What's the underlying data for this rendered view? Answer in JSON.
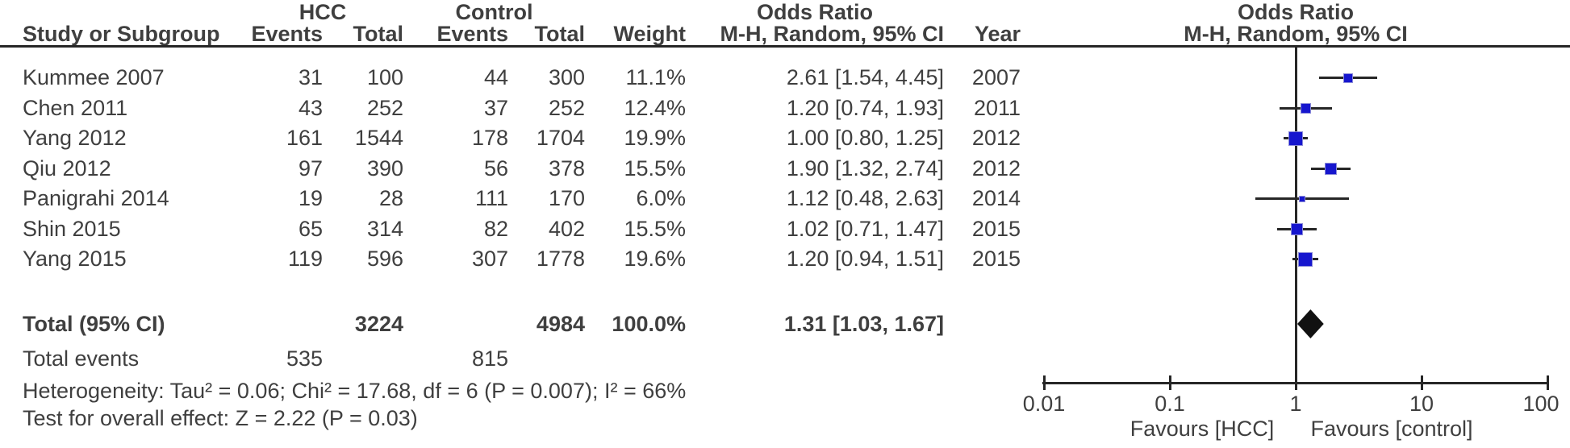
{
  "header": {
    "group_hcc": "HCC",
    "group_control": "Control",
    "group_odds_ratio_text": "Odds Ratio",
    "group_odds_ratio_plot": "Odds Ratio",
    "col_study": "Study or Subgroup",
    "col_events_hcc": "Events",
    "col_total_hcc": "Total",
    "col_events_ctrl": "Events",
    "col_total_ctrl": "Total",
    "col_weight": "Weight",
    "col_ci": "M-H, Random, 95% CI",
    "col_year": "Year",
    "col_ci_plot": "M-H, Random, 95% CI"
  },
  "chart_data": {
    "type": "forest",
    "effect_measure": "Odds Ratio",
    "method": "M-H, Random, 95% CI",
    "x_scale": "log10",
    "xlim": [
      0.01,
      100
    ],
    "axis_ticks": [
      0.01,
      0.1,
      1,
      10,
      100
    ],
    "axis_tick_labels": [
      "0.01",
      "0.1",
      "1",
      "10",
      "100"
    ],
    "favours_left": "Favours [HCC]",
    "favours_right": "Favours [control]",
    "studies": [
      {
        "name": "Kummee 2007",
        "hcc_events": "31",
        "hcc_total": "100",
        "ctrl_events": "44",
        "ctrl_total": "300",
        "weight": "11.1%",
        "weight_pct": 11.1,
        "or": 2.61,
        "ci_low": 1.54,
        "ci_high": 4.45,
        "ci_label": "2.61 [1.54, 4.45]",
        "year": "2007"
      },
      {
        "name": "Chen 2011",
        "hcc_events": "43",
        "hcc_total": "252",
        "ctrl_events": "37",
        "ctrl_total": "252",
        "weight": "12.4%",
        "weight_pct": 12.4,
        "or": 1.2,
        "ci_low": 0.74,
        "ci_high": 1.93,
        "ci_label": "1.20 [0.74, 1.93]",
        "year": "2011"
      },
      {
        "name": "Yang 2012",
        "hcc_events": "161",
        "hcc_total": "1544",
        "ctrl_events": "178",
        "ctrl_total": "1704",
        "weight": "19.9%",
        "weight_pct": 19.9,
        "or": 1.0,
        "ci_low": 0.8,
        "ci_high": 1.25,
        "ci_label": "1.00 [0.80, 1.25]",
        "year": "2012"
      },
      {
        "name": "Qiu 2012",
        "hcc_events": "97",
        "hcc_total": "390",
        "ctrl_events": "56",
        "ctrl_total": "378",
        "weight": "15.5%",
        "weight_pct": 15.5,
        "or": 1.9,
        "ci_low": 1.32,
        "ci_high": 2.74,
        "ci_label": "1.90 [1.32, 2.74]",
        "year": "2012"
      },
      {
        "name": "Panigrahi 2014",
        "hcc_events": "19",
        "hcc_total": "28",
        "ctrl_events": "111",
        "ctrl_total": "170",
        "weight": "6.0%",
        "weight_pct": 6.0,
        "or": 1.12,
        "ci_low": 0.48,
        "ci_high": 2.63,
        "ci_label": "1.12 [0.48, 2.63]",
        "year": "2014"
      },
      {
        "name": "Shin 2015",
        "hcc_events": "65",
        "hcc_total": "314",
        "ctrl_events": "82",
        "ctrl_total": "402",
        "weight": "15.5%",
        "weight_pct": 15.5,
        "or": 1.02,
        "ci_low": 0.71,
        "ci_high": 1.47,
        "ci_label": "1.02 [0.71, 1.47]",
        "year": "2015"
      },
      {
        "name": "Yang 2015",
        "hcc_events": "119",
        "hcc_total": "596",
        "ctrl_events": "307",
        "ctrl_total": "1778",
        "weight": "19.6%",
        "weight_pct": 19.6,
        "or": 1.2,
        "ci_low": 0.94,
        "ci_high": 1.51,
        "ci_label": "1.20 [0.94, 1.51]",
        "year": "2015"
      }
    ],
    "total": {
      "label": "Total (95% CI)",
      "hcc_total": "3224",
      "ctrl_total": "4984",
      "weight": "100.0%",
      "or": 1.31,
      "ci_low": 1.03,
      "ci_high": 1.67,
      "ci_label": "1.31 [1.03, 1.67]"
    },
    "total_events": {
      "label": "Total events",
      "hcc": "535",
      "ctrl": "815"
    },
    "heterogeneity": "Heterogeneity: Tau² = 0.06; Chi² = 17.68, df = 6 (P = 0.007); I² = 66%",
    "overall_effect": "Test for overall effect: Z = 2.22 (P = 0.03)"
  },
  "colors": {
    "marker_blue": "#1616ce",
    "diamond_black": "#111111",
    "line_dark": "#262626",
    "text_gray": "#3f3f3f"
  }
}
